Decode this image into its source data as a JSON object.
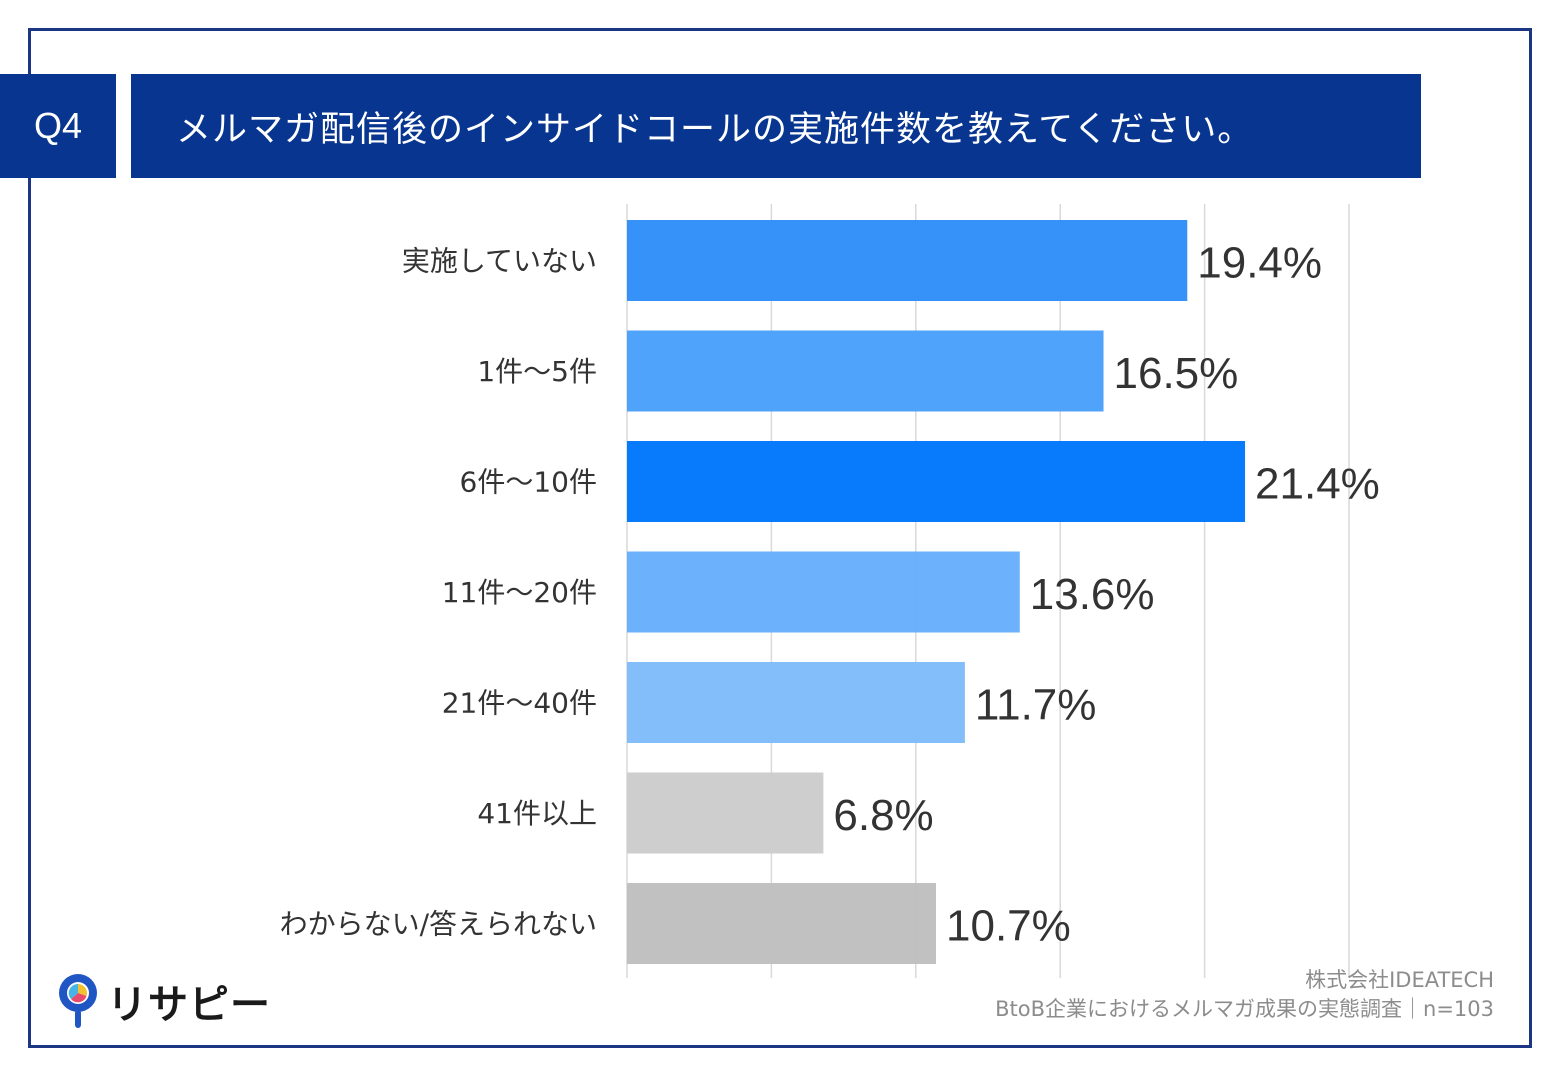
{
  "header": {
    "question_badge": "Q4",
    "question_text": "メルマガ配信後のインサイドコールの実施件数を教えてください。"
  },
  "chart_data": {
    "type": "bar",
    "orientation": "horizontal",
    "title": "メルマガ配信後のインサイドコールの実施件数を教えてください。",
    "categories": [
      "実施していない",
      "1件～5件",
      "6件～10件",
      "11件～20件",
      "21件～40件",
      "41件以上",
      "わからない/答えられない"
    ],
    "values": [
      19.4,
      16.5,
      21.4,
      13.6,
      11.7,
      6.8,
      10.7
    ],
    "value_labels": [
      "19.4%",
      "16.5%",
      "21.4%",
      "13.6%",
      "11.7%",
      "6.8%",
      "10.7%"
    ],
    "colors": [
      "#2f8ef8",
      "#4aa0fb",
      "#0077fc",
      "#66aefb",
      "#7fbcfb",
      "#cccccc",
      "#bfbfbf"
    ],
    "xlim": [
      0,
      25
    ],
    "grid": true,
    "xlabel": "",
    "ylabel": ""
  },
  "footer": {
    "logo_text": "リサピー",
    "source_line1": "株式会社IDEATECH",
    "source_line2": "BtoB企業におけるメルマガ成果の実態調査｜n=103"
  }
}
